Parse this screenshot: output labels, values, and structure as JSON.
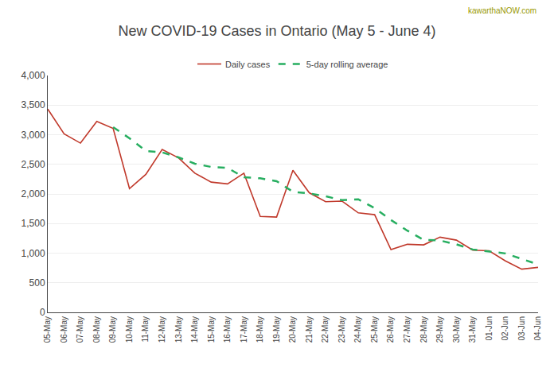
{
  "chart_data": {
    "type": "line",
    "title": "New COVID-19 Cases in Ontario (May 5 - June 4)",
    "annotations": [
      {
        "text": "kawarthaNOW.com",
        "color": "#999900"
      }
    ],
    "categories": [
      "05-May",
      "06-May",
      "07-May",
      "08-May",
      "09-May",
      "10-May",
      "11-May",
      "12-May",
      "13-May",
      "14-May",
      "15-May",
      "16-May",
      "17-May",
      "18-May",
      "19-May",
      "20-May",
      "21-May",
      "22-May",
      "23-May",
      "24-May",
      "25-May",
      "26-May",
      "27-May",
      "28-May",
      "29-May",
      "30-May",
      "31-May",
      "01-Jun",
      "02-Jun",
      "03-Jun",
      "04-Jun"
    ],
    "series": [
      {
        "name": "Daily cases",
        "color": "#c0392b",
        "line_style": "solid",
        "values": [
          3434,
          3015,
          2858,
          3224,
          3106,
          2090,
          2330,
          2750,
          2610,
          2350,
          2200,
          2170,
          2350,
          1620,
          1610,
          2400,
          2020,
          1870,
          1880,
          1680,
          1650,
          1060,
          1150,
          1140,
          1270,
          1220,
          1050,
          1040,
          870,
          730,
          760
        ]
      },
      {
        "name": "5-day rolling average",
        "color": "#27ae60",
        "line_style": "dashed",
        "values": [
          null,
          null,
          null,
          null,
          3127,
          2941,
          2726,
          2702,
          2617,
          2511,
          2456,
          2440,
          2282,
          2264,
          2216,
          2036,
          2010,
          1960,
          1896,
          1910,
          1760,
          1560,
          1380,
          1224,
          1214,
          1148,
          1062,
          1025,
          995,
          903,
          810
        ]
      }
    ],
    "ylim": [
      0,
      4000
    ],
    "yticks": [
      0,
      500,
      {
        "value": 1000,
        "label": "1,000"
      },
      {
        "value": 1500,
        "label": "1,500"
      },
      {
        "value": 2000,
        "label": "2,000"
      },
      {
        "value": 2500,
        "label": "2,500"
      },
      {
        "value": 3000,
        "label": "3,000"
      },
      {
        "value": 3500,
        "label": "3,500"
      },
      {
        "value": 4000,
        "label": "4,000"
      }
    ],
    "grid": true,
    "legend": "upper center"
  }
}
